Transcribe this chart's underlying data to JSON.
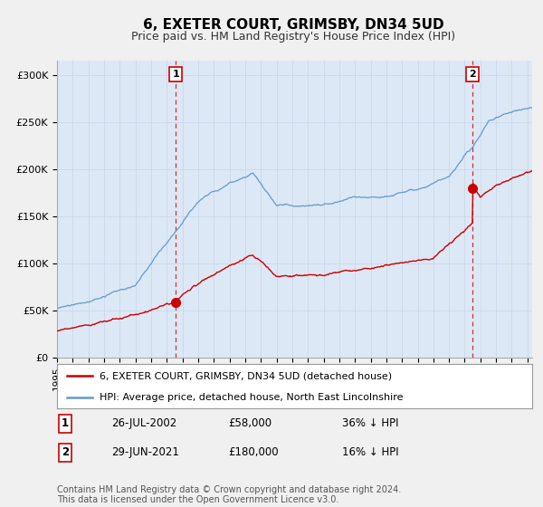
{
  "title": "6, EXETER COURT, GRIMSBY, DN34 5UD",
  "subtitle": "Price paid vs. HM Land Registry's House Price Index (HPI)",
  "title_fontsize": 11,
  "subtitle_fontsize": 9,
  "background_color": "#f0f0f0",
  "plot_bg_color": "#dce8f5",
  "ylabel_ticks": [
    "£0",
    "£50K",
    "£100K",
    "£150K",
    "£200K",
    "£250K",
    "£300K"
  ],
  "ytick_vals": [
    0,
    50000,
    100000,
    150000,
    200000,
    250000,
    300000
  ],
  "ylim": [
    0,
    315000
  ],
  "xlim_start": 1995.0,
  "xlim_end": 2025.3,
  "hpi_color": "#6699cc",
  "price_color": "#cc0000",
  "dashed_line_color": "#cc0000",
  "marker1_x": 2002.57,
  "marker1_y": 58000,
  "marker2_x": 2021.49,
  "marker2_y": 180000,
  "legend_label_price": "6, EXETER COURT, GRIMSBY, DN34 5UD (detached house)",
  "legend_label_hpi": "HPI: Average price, detached house, North East Lincolnshire",
  "annotation1_label": "1",
  "annotation2_label": "2",
  "table_row1": [
    "1",
    "26-JUL-2002",
    "£58,000",
    "36% ↓ HPI"
  ],
  "table_row2": [
    "2",
    "29-JUN-2021",
    "£180,000",
    "16% ↓ HPI"
  ],
  "footer": "Contains HM Land Registry data © Crown copyright and database right 2024.\nThis data is licensed under the Open Government Licence v3.0.",
  "footer_fontsize": 7,
  "grid_color": "#c8d8ea"
}
